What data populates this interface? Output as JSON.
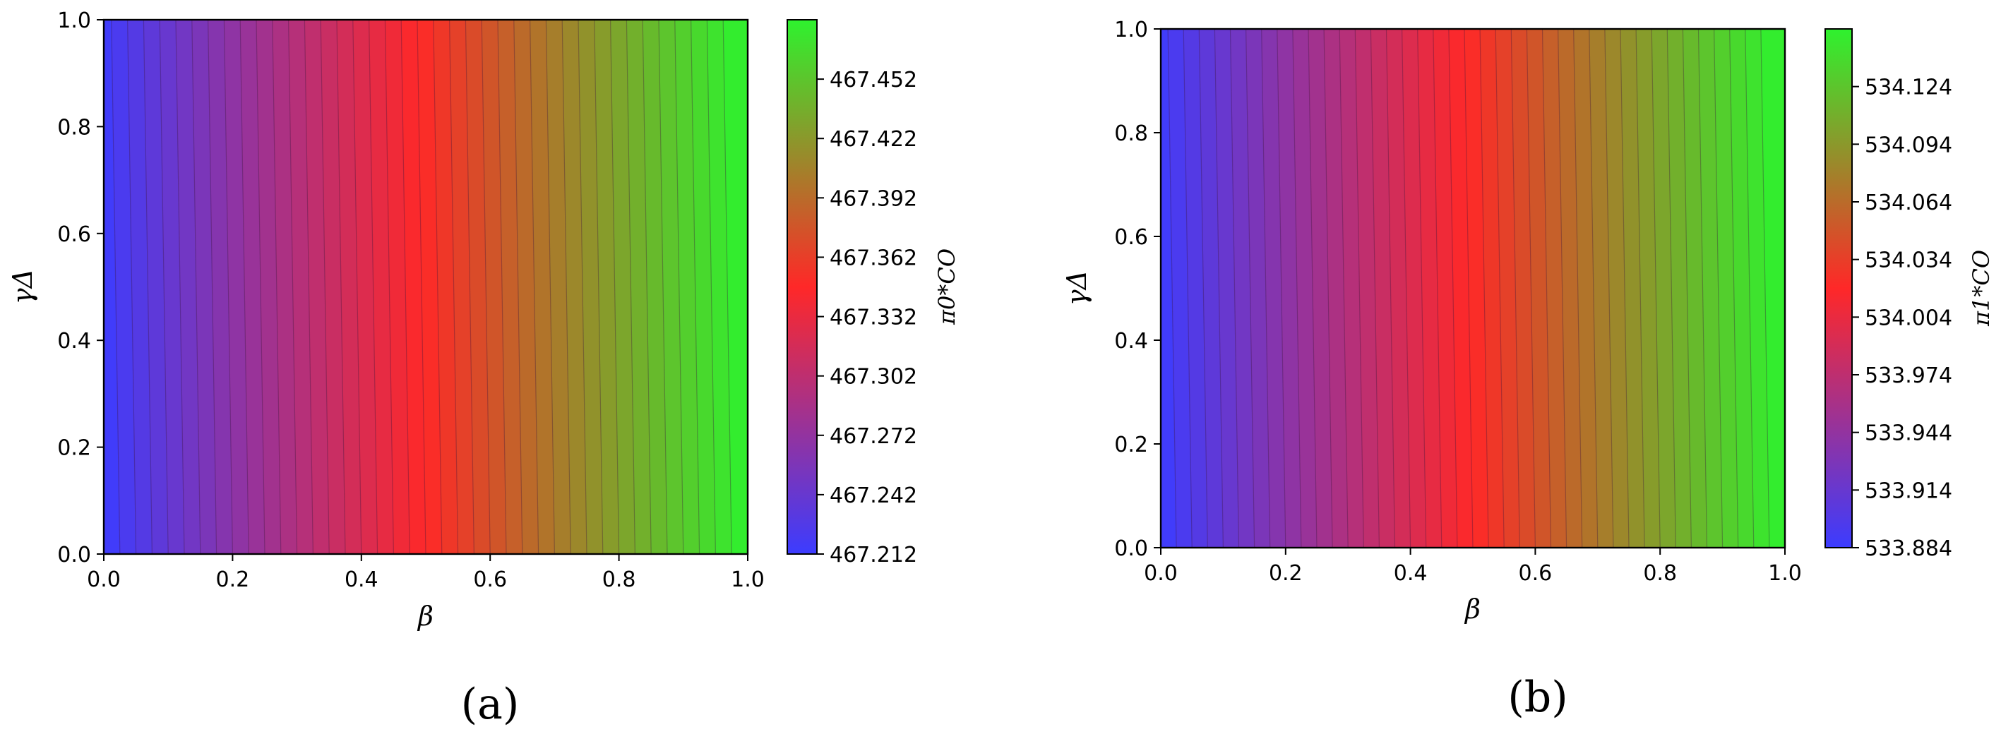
{
  "chart_data": [
    {
      "type": "heatmap",
      "caption": "(a)",
      "xlabel": "β",
      "ylabel": "γΔ",
      "xlim": [
        0.0,
        1.0
      ],
      "ylim": [
        0.0,
        1.0
      ],
      "x_ticks": [
        "0.0",
        "0.2",
        "0.4",
        "0.6",
        "0.8",
        "1.0"
      ],
      "y_ticks": [
        "0.0",
        "0.2",
        "0.4",
        "0.6",
        "0.8",
        "1.0"
      ],
      "colorbar": {
        "label": "π0*CO",
        "min": 467.212,
        "max": 467.482,
        "ticks": [
          "467.212",
          "467.242",
          "467.272",
          "467.302",
          "467.332",
          "467.362",
          "467.392",
          "467.422",
          "467.452"
        ],
        "colors": [
          "#3c3cff",
          "#ff2828",
          "#2ef22e"
        ]
      },
      "contour_levels": 40,
      "value_gradient": "increases with β; nearly independent of γΔ"
    },
    {
      "type": "heatmap",
      "caption": "(b)",
      "xlabel": "β",
      "ylabel": "γΔ",
      "xlim": [
        0.0,
        1.0
      ],
      "ylim": [
        0.0,
        1.0
      ],
      "x_ticks": [
        "0.0",
        "0.2",
        "0.4",
        "0.6",
        "0.8",
        "1.0"
      ],
      "y_ticks": [
        "0.0",
        "0.2",
        "0.4",
        "0.6",
        "0.8",
        "1.0"
      ],
      "colorbar": {
        "label": "π1*CO",
        "min": 533.884,
        "max": 534.154,
        "ticks": [
          "533.884",
          "533.914",
          "533.944",
          "533.974",
          "534.004",
          "534.034",
          "534.064",
          "534.094",
          "534.124"
        ],
        "colors": [
          "#3c3cff",
          "#ff2828",
          "#2ef22e"
        ]
      },
      "contour_levels": 40,
      "value_gradient": "increases with β; nearly independent of γΔ"
    }
  ]
}
